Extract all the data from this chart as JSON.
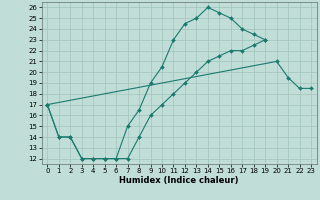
{
  "xlabel": "Humidex (Indice chaleur)",
  "xlim": [
    -0.5,
    23.5
  ],
  "ylim": [
    11.5,
    26.5
  ],
  "xticks": [
    0,
    1,
    2,
    3,
    4,
    5,
    6,
    7,
    8,
    9,
    10,
    11,
    12,
    13,
    14,
    15,
    16,
    17,
    18,
    19,
    20,
    21,
    22,
    23
  ],
  "yticks": [
    12,
    13,
    14,
    15,
    16,
    17,
    18,
    19,
    20,
    21,
    22,
    23,
    24,
    25,
    26
  ],
  "line_color": "#1a7a6e",
  "bg_color": "#c0ddd8",
  "grid_color": "#a0c4bc",
  "line_data": [
    {
      "x": [
        0,
        1,
        2,
        3,
        4,
        5,
        6,
        7,
        8,
        9,
        10,
        11,
        12,
        13,
        14,
        15,
        16,
        17,
        18,
        19
      ],
      "y": [
        17,
        14,
        14,
        12,
        12,
        12,
        12,
        15,
        16.5,
        19,
        20.5,
        23,
        24.5,
        25,
        26,
        25.5,
        25,
        24,
        23.5,
        23
      ]
    },
    {
      "x": [
        0,
        1,
        2,
        3,
        4,
        5,
        6,
        7,
        8,
        9,
        10,
        11,
        12,
        13,
        14,
        15,
        16,
        17,
        18,
        19
      ],
      "y": [
        17,
        14,
        14,
        12,
        12,
        12,
        12,
        12,
        14,
        16,
        17,
        18,
        19,
        20,
        21,
        21.5,
        22,
        22,
        22.5,
        23
      ]
    },
    {
      "x": [
        0,
        20,
        21,
        22,
        23
      ],
      "y": [
        17,
        21,
        19.5,
        18.5,
        18.5
      ]
    }
  ],
  "marker": "D",
  "markersize": 2.0,
  "linewidth": 0.8,
  "tick_fontsize": 5.0,
  "xlabel_fontsize": 6.0
}
